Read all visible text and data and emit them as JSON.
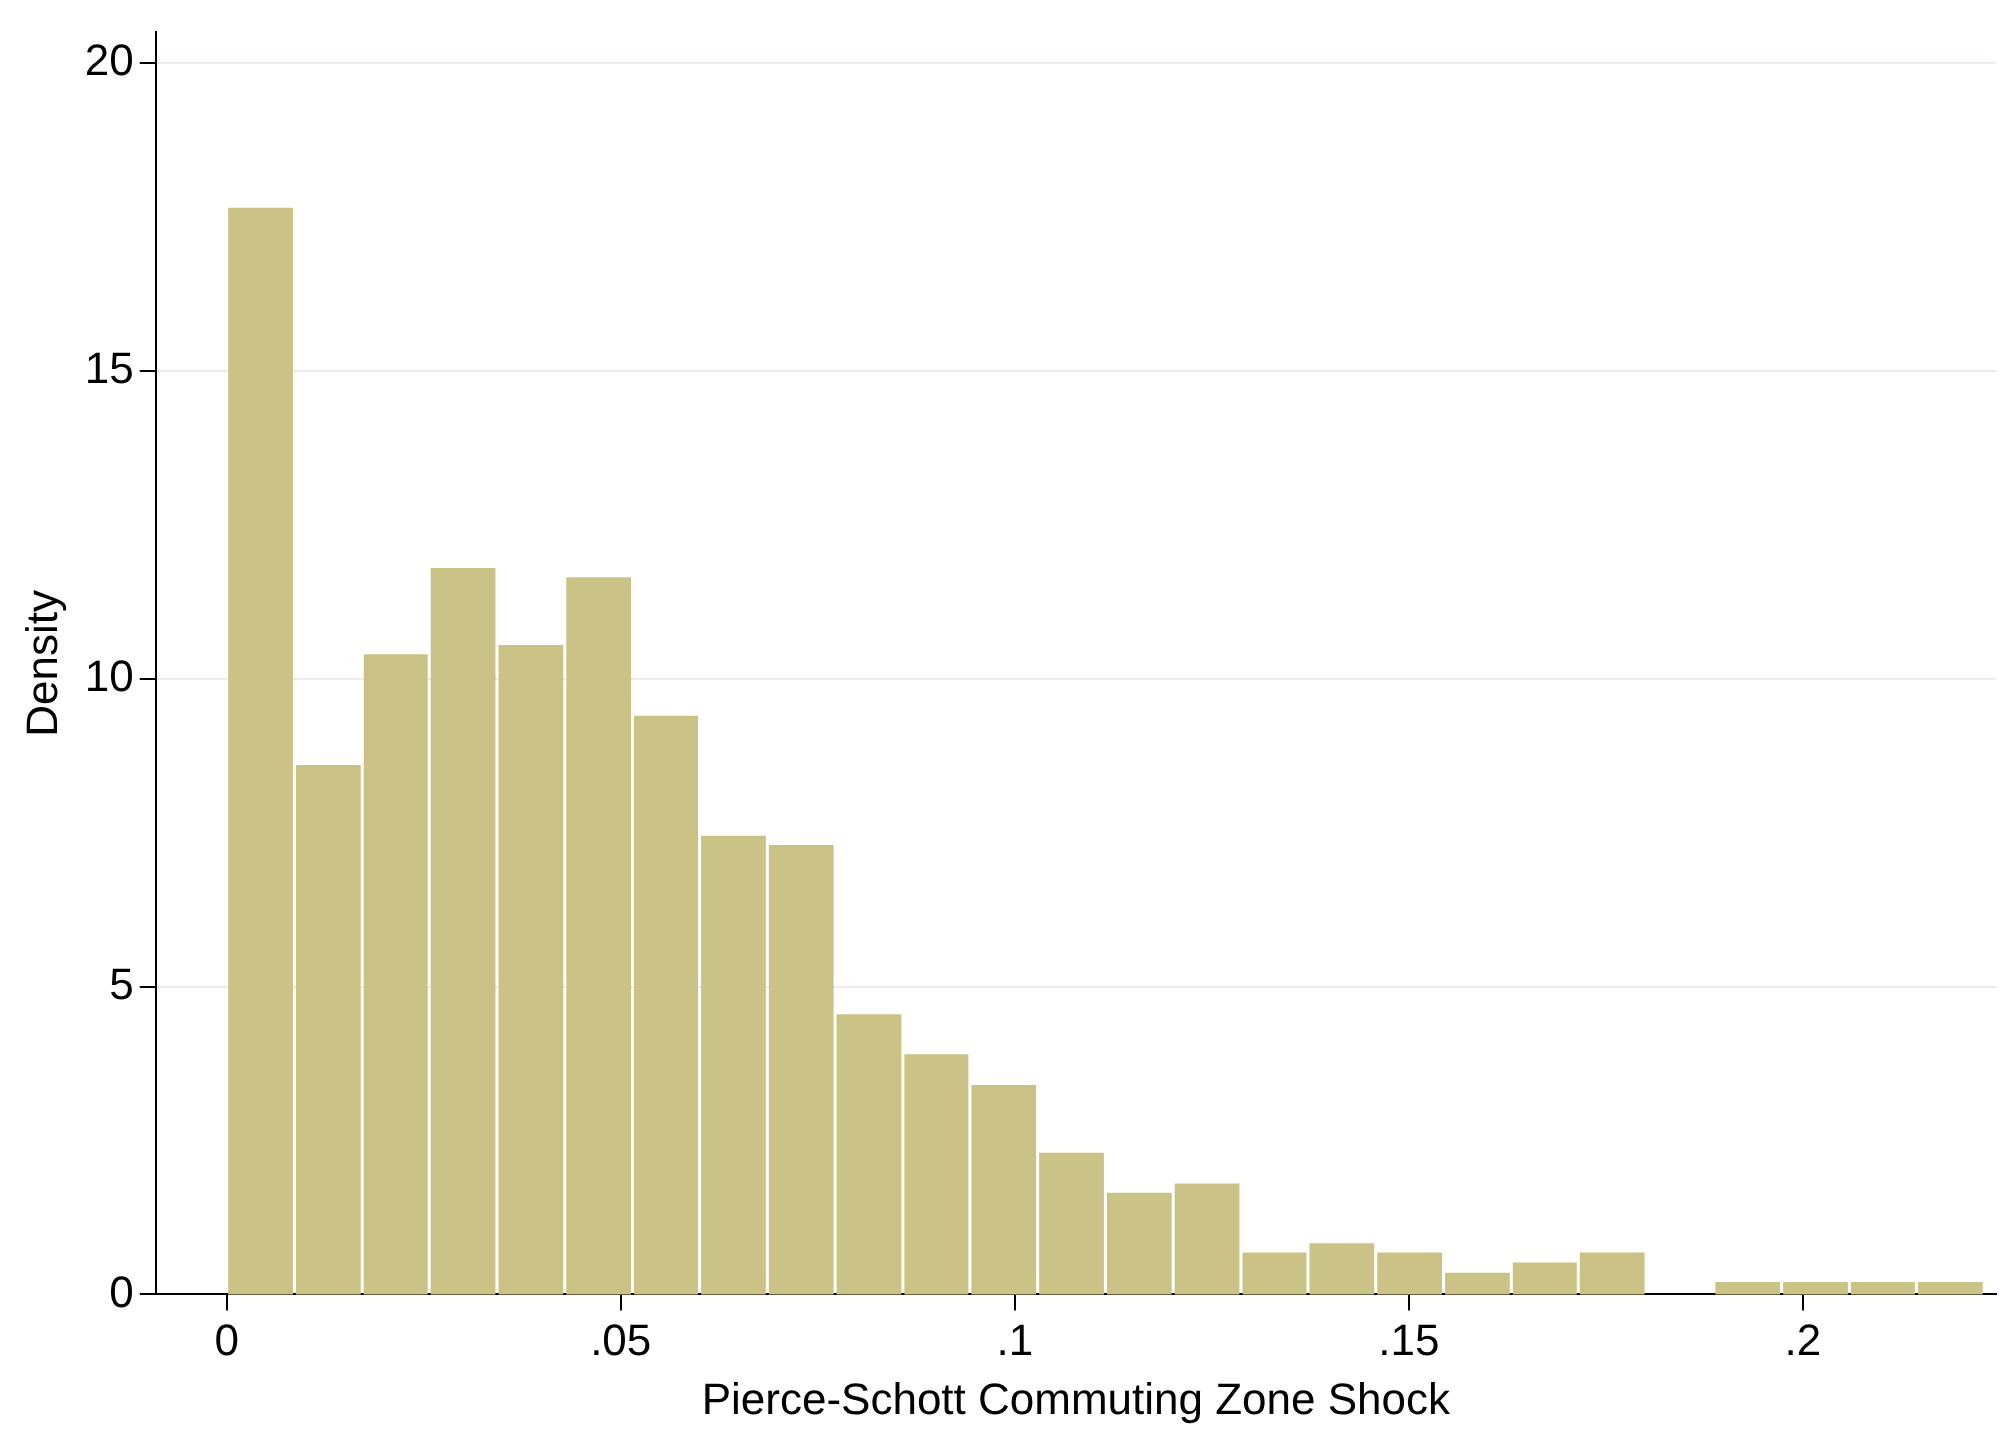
{
  "chart_data": {
    "type": "histogram",
    "xlabel": "Pierce-Schott Commuting Zone Shock",
    "ylabel": "Density",
    "bins": [
      0,
      0.0086,
      0.0172,
      0.0257,
      0.0343,
      0.0429,
      0.0515,
      0.06,
      0.0686,
      0.0772,
      0.0858,
      0.0943,
      0.1029,
      0.1115,
      0.1201,
      0.1287,
      0.1372,
      0.1458,
      0.1544,
      0.163,
      0.1715,
      0.1801,
      0.1887,
      0.1973,
      0.2059,
      0.2144,
      0.223
    ],
    "values": [
      17.65,
      8.6,
      10.4,
      11.8,
      10.55,
      11.65,
      9.4,
      7.45,
      7.3,
      4.55,
      3.9,
      3.4,
      2.3,
      1.65,
      1.8,
      0.68,
      0.83,
      0.68,
      0.35,
      0.52,
      0.68,
      0,
      0.2,
      0.2,
      0.2,
      0.2
    ],
    "color": "#cbc385",
    "xlim": [
      -0.009,
      0.2245
    ],
    "xticks": [
      {
        "value": 0,
        "label": "0"
      },
      {
        "value": 0.05,
        "label": ".05"
      },
      {
        "value": 0.1,
        "label": ".1"
      },
      {
        "value": 0.15,
        "label": ".15"
      },
      {
        "value": 0.2,
        "label": ".2"
      }
    ],
    "ylim": [
      0,
      20.5
    ],
    "yticks": [
      0,
      5,
      10,
      15,
      20
    ],
    "grid": "y"
  }
}
